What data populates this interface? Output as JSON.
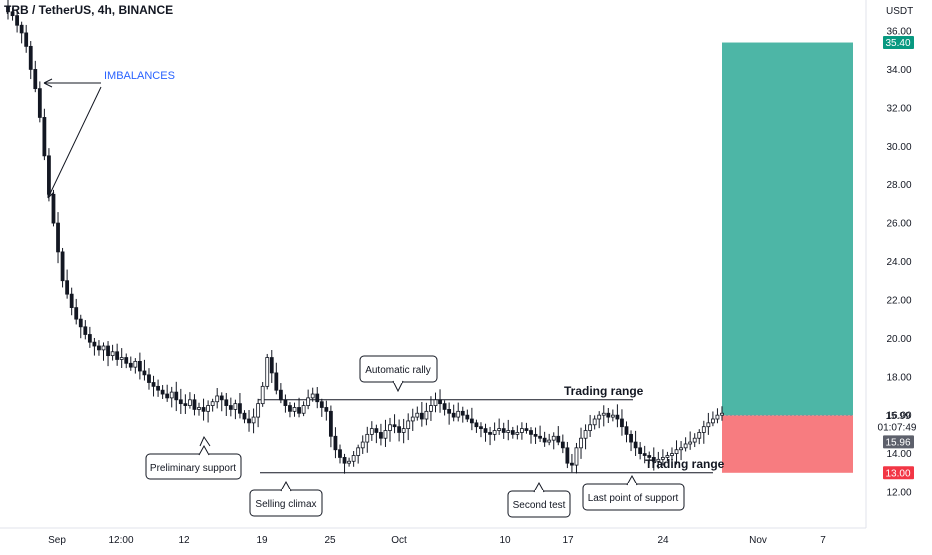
{
  "header": {
    "symbol_label": "TRB / TetherUS, 4h, BINANCE",
    "currency": "USDT"
  },
  "colors": {
    "up": "#000000",
    "down": "#000000",
    "profit_zone": "#4db6a6",
    "loss_zone": "#f77c80",
    "target_badge": "#089981",
    "stop_badge": "#f23645",
    "last_price_badge": "#5d606b",
    "annotation_blue": "#2962ff"
  },
  "chart_data": {
    "type": "candlestick",
    "y_axis": {
      "range": [
        10.4,
        37.0
      ],
      "ticks": [
        "12.00",
        "14.00",
        "16.00",
        "18.00",
        "20.00",
        "22.00",
        "24.00",
        "26.00",
        "28.00",
        "30.00",
        "32.00",
        "34.00",
        "36.00"
      ]
    },
    "x_axis": {
      "ticks": [
        "Sep",
        "12:00",
        "12",
        "19",
        "25",
        "Oct",
        "10",
        "17",
        "24",
        "Nov",
        "7"
      ]
    },
    "series_close": [
      37.0,
      36.8,
      36.3,
      35.9,
      35.2,
      34.0,
      33.0,
      31.5,
      29.5,
      27.5,
      26.0,
      24.5,
      23.0,
      22.3,
      21.6,
      21.0,
      20.6,
      20.2,
      19.8,
      19.6,
      19.4,
      19.6,
      19.1,
      19.3,
      18.9,
      19.0,
      18.7,
      18.5,
      18.8,
      18.3,
      18.1,
      17.7,
      17.5,
      17.3,
      17.1,
      16.9,
      17.2,
      16.8,
      16.6,
      16.5,
      16.8,
      16.3,
      16.4,
      16.2,
      16.5,
      16.7,
      17.0,
      16.8,
      16.5,
      16.3,
      16.6,
      16.1,
      15.8,
      15.6,
      15.9,
      16.6,
      17.5,
      19.0,
      18.2,
      17.3,
      16.8,
      16.5,
      16.2,
      16.4,
      16.1,
      16.5,
      16.9,
      17.1,
      16.7,
      16.4,
      16.2,
      14.9,
      14.2,
      13.8,
      13.5,
      13.6,
      13.9,
      14.3,
      14.6,
      15.0,
      15.3,
      15.1,
      14.8,
      15.2,
      15.5,
      15.4,
      15.1,
      15.3,
      15.7,
      15.9,
      16.1,
      15.8,
      16.2,
      16.5,
      16.8,
      16.6,
      16.3,
      16.1,
      15.9,
      16.2,
      16.0,
      15.8,
      15.6,
      15.4,
      15.3,
      15.1,
      15.0,
      15.2,
      15.3,
      15.1,
      15.2,
      15.0,
      15.1,
      15.3,
      15.2,
      15.0,
      14.9,
      14.8,
      14.6,
      14.7,
      14.9,
      14.6,
      14.3,
      13.5,
      13.4,
      14.3,
      14.8,
      15.2,
      15.5,
      15.8,
      16.0,
      16.1,
      15.9,
      16.0,
      15.8,
      15.4,
      15.0,
      14.6,
      14.3,
      14.0,
      13.9,
      13.8,
      13.6,
      13.7,
      13.8,
      13.9,
      14.0,
      14.2,
      14.3,
      14.5,
      14.6,
      14.8,
      15.1,
      15.4,
      15.6,
      15.8,
      16.0,
      16.1
    ],
    "annotations": {
      "imbalances": "IMBALANCES",
      "preliminary_support": "Preliminary support",
      "selling_climax": "Selling climax",
      "automatic_rally": "Automatic rally",
      "second_test": "Second test",
      "last_point_of_support": "Last point of support",
      "trading_range_top": "Trading range",
      "trading_range_bottom": "Trading range"
    },
    "range_levels": {
      "top": 16.8,
      "bottom": 13.0
    },
    "position": {
      "entry": 15.99,
      "target": 35.4,
      "stop": 13.0
    },
    "price_labels": {
      "target": "35.40",
      "entry": "15.99",
      "countdown": "01:07:49",
      "last": "15.96",
      "stop": "13.00"
    }
  }
}
